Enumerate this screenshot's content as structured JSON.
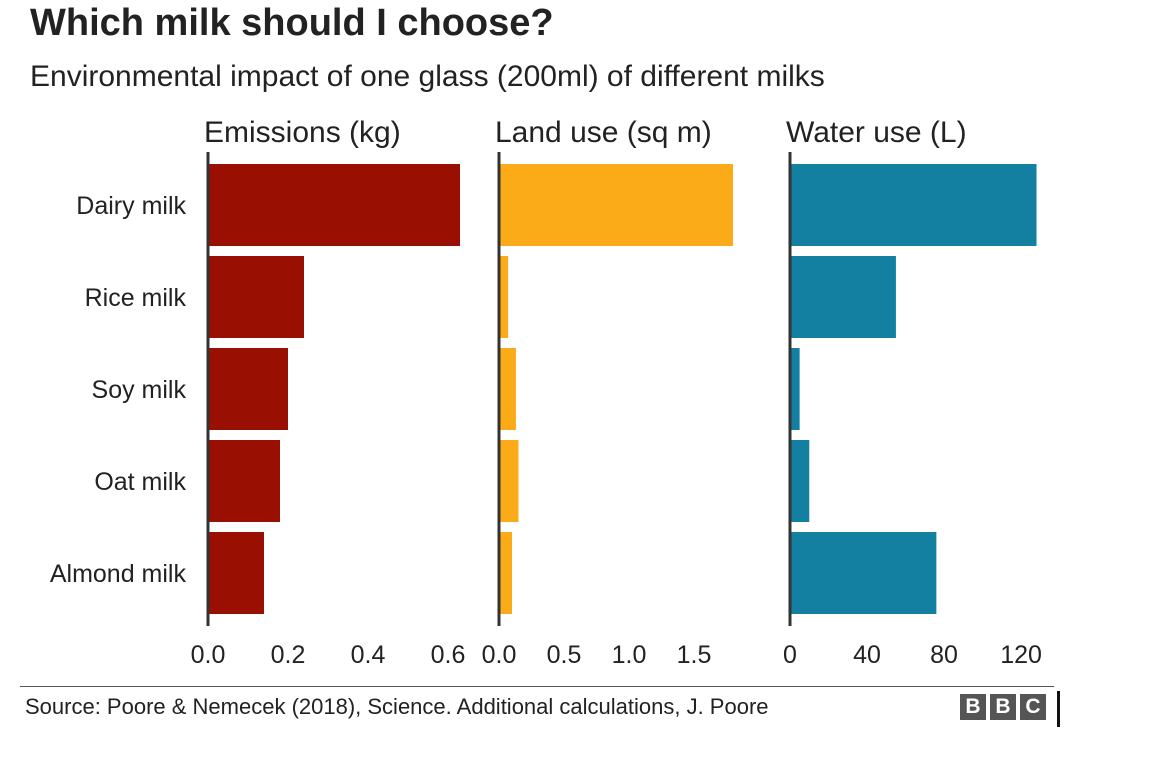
{
  "title": "Which milk should I choose?",
  "subtitle": "Environmental impact of one glass (200ml) of different milks",
  "source": "Source: Poore & Nemecek (2018), Science. Additional calculations, J. Poore",
  "logo": [
    "B",
    "B",
    "C"
  ],
  "chart_data": {
    "type": "bar",
    "orientation": "horizontal",
    "categories": [
      "Dairy milk",
      "Rice milk",
      "Soy milk",
      "Oat milk",
      "Almond milk"
    ],
    "series": [
      {
        "name": "Emissions (kg)",
        "color": "#990f02",
        "values": [
          0.63,
          0.24,
          0.2,
          0.18,
          0.14
        ],
        "xlim": [
          0,
          0.65
        ],
        "ticks": [
          0,
          0.2,
          0.4,
          0.6
        ],
        "tick_labels": [
          "0.0",
          "0.2",
          "0.4",
          "0.6"
        ]
      },
      {
        "name": "Land use (sq m)",
        "color": "#fbab18",
        "values": [
          1.8,
          0.07,
          0.13,
          0.15,
          0.1
        ],
        "xlim": [
          0,
          2.0
        ],
        "ticks": [
          0,
          0.5,
          1.0,
          1.5
        ],
        "tick_labels": [
          "0.0",
          "0.5",
          "1.0",
          "1.5"
        ]
      },
      {
        "name": "Water use (L)",
        "color": "#1380a1",
        "values": [
          128,
          55,
          5,
          10,
          76
        ],
        "xlim": [
          0,
          135
        ],
        "ticks": [
          0,
          40,
          80,
          120
        ],
        "tick_labels": [
          "0",
          "40",
          "80",
          "120"
        ]
      }
    ],
    "grid": false,
    "legend": "none"
  }
}
